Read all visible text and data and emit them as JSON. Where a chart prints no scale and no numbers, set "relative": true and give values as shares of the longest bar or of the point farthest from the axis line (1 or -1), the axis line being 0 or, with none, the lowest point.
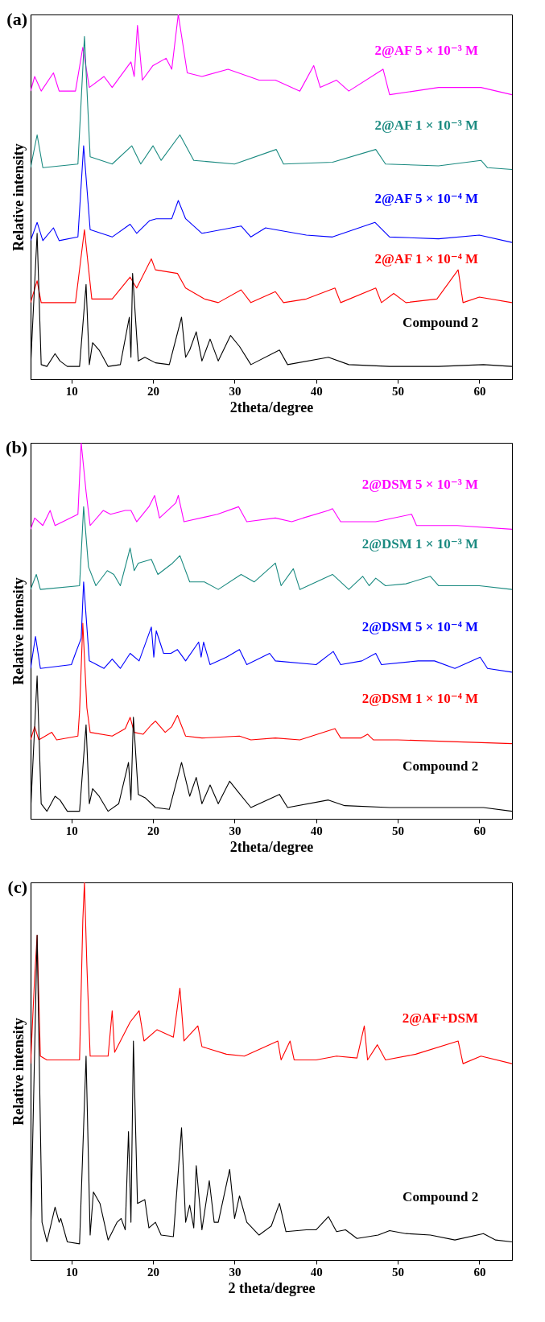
{
  "chart_data": [
    {
      "type": "line",
      "relative": true,
      "xlabel": "2theta/degree",
      "ylabel": "Relative intensity",
      "annotations": [
        "(a)"
      ],
      "xlim": [
        5,
        64
      ],
      "xticks": [
        10,
        20,
        30,
        40,
        50,
        60
      ],
      "series": [
        {
          "name": "2@AF 5 × 10⁻³ M",
          "color": "#ff00ff",
          "x": [
            5,
            5.5,
            6.3,
            7.8,
            8.5,
            10.5,
            11.4,
            12.2,
            14,
            15,
            17.3,
            17.7,
            18.1,
            18.7,
            20,
            21.6,
            22.3,
            23.1,
            24.2,
            26,
            29.2,
            33,
            35,
            38,
            39.7,
            40.5,
            42.5,
            44,
            48.2,
            49,
            55,
            60.2,
            64
          ],
          "values": [
            0.79,
            0.83,
            0.79,
            0.84,
            0.79,
            0.79,
            0.91,
            0.8,
            0.83,
            0.8,
            0.87,
            0.83,
            0.97,
            0.82,
            0.86,
            0.88,
            0.85,
            1.0,
            0.84,
            0.83,
            0.85,
            0.82,
            0.82,
            0.79,
            0.86,
            0.8,
            0.82,
            0.79,
            0.85,
            0.78,
            0.8,
            0.8,
            0.78
          ]
        },
        {
          "name": "2@AF 1 × 10⁻³ M",
          "color": "#1a8a80",
          "x": [
            5,
            5.8,
            6.5,
            10.8,
            11.6,
            12.3,
            15,
            17.4,
            18.5,
            20,
            21,
            23.3,
            25,
            30,
            35.1,
            36,
            42,
            47.3,
            48.5,
            55,
            60.2,
            61,
            64
          ],
          "values": [
            0.58,
            0.67,
            0.58,
            0.59,
            0.94,
            0.61,
            0.59,
            0.64,
            0.59,
            0.64,
            0.6,
            0.67,
            0.6,
            0.59,
            0.63,
            0.59,
            0.595,
            0.63,
            0.59,
            0.585,
            0.6,
            0.58,
            0.575
          ]
        },
        {
          "name": "2@AF 5 × 10⁻⁴ M",
          "color": "#0000ff",
          "x": [
            5,
            5.8,
            6.5,
            7.8,
            8.5,
            10.8,
            11.5,
            12.3,
            15,
            17.2,
            18,
            19.6,
            20.4,
            22.3,
            23.1,
            24,
            26,
            30.8,
            32,
            33.8,
            35,
            38.8,
            42,
            47.2,
            49,
            55,
            60,
            64
          ],
          "values": [
            0.38,
            0.43,
            0.38,
            0.415,
            0.38,
            0.39,
            0.64,
            0.41,
            0.39,
            0.425,
            0.4,
            0.435,
            0.44,
            0.44,
            0.49,
            0.44,
            0.4,
            0.42,
            0.39,
            0.415,
            0.41,
            0.395,
            0.39,
            0.43,
            0.39,
            0.385,
            0.395,
            0.375
          ]
        },
        {
          "name": "2@AF 1 × 10⁻⁴ M",
          "color": "#ff0000",
          "x": [
            5,
            5.8,
            6.3,
            10.5,
            11.6,
            12.5,
            15,
            17.2,
            18,
            19.8,
            20.3,
            23,
            24,
            26.3,
            28,
            30.8,
            32,
            35,
            36,
            38.8,
            42.3,
            43,
            47.3,
            48,
            49.5,
            51,
            54.8,
            57.4,
            58,
            60,
            64
          ],
          "values": [
            0.21,
            0.27,
            0.21,
            0.21,
            0.41,
            0.22,
            0.22,
            0.28,
            0.25,
            0.33,
            0.3,
            0.29,
            0.25,
            0.22,
            0.21,
            0.245,
            0.21,
            0.24,
            0.21,
            0.22,
            0.25,
            0.21,
            0.25,
            0.21,
            0.235,
            0.21,
            0.22,
            0.3,
            0.21,
            0.225,
            0.21
          ]
        },
        {
          "name": "Compound 2",
          "color": "#000000",
          "x": [
            5,
            5.8,
            6.3,
            7,
            8,
            8.6,
            9.5,
            11,
            11.8,
            12.2,
            12.6,
            13.4,
            14.5,
            16,
            17.1,
            17.3,
            17.5,
            18.2,
            19,
            20.3,
            22,
            23.5,
            24,
            24.5,
            25.3,
            26,
            27,
            28,
            29.5,
            30.6,
            32,
            35.5,
            36.5,
            41.5,
            44,
            49,
            55,
            60.5,
            64
          ],
          "values": [
            0.035,
            0.4,
            0.04,
            0.035,
            0.07,
            0.05,
            0.035,
            0.035,
            0.26,
            0.04,
            0.1,
            0.08,
            0.035,
            0.04,
            0.17,
            0.06,
            0.29,
            0.05,
            0.06,
            0.045,
            0.04,
            0.17,
            0.06,
            0.08,
            0.13,
            0.05,
            0.11,
            0.05,
            0.12,
            0.09,
            0.04,
            0.08,
            0.04,
            0.06,
            0.04,
            0.035,
            0.035,
            0.04,
            0.035
          ]
        }
      ]
    },
    {
      "type": "line",
      "relative": true,
      "xlabel": "2theta/degree",
      "ylabel": "Relative intensity",
      "annotations": [
        "(b)"
      ],
      "xlim": [
        5,
        64
      ],
      "xticks": [
        10,
        20,
        30,
        40,
        50,
        60
      ],
      "series": [
        {
          "name": "2@DSM 5 × 10⁻³ M",
          "color": "#ff00ff",
          "x": [
            5,
            5.5,
            6.5,
            7.4,
            8,
            10.8,
            11.2,
            11.8,
            12.3,
            13.9,
            14.8,
            16.6,
            17.3,
            18,
            19.5,
            20.2,
            20.8,
            22.8,
            23.1,
            23.8,
            27.9,
            30.5,
            31.5,
            35,
            37,
            38.4,
            41.5,
            42,
            43,
            47.3,
            51.7,
            52.3,
            57.3,
            64
          ],
          "values": [
            0.77,
            0.8,
            0.78,
            0.82,
            0.78,
            0.81,
            1.0,
            0.87,
            0.78,
            0.82,
            0.81,
            0.82,
            0.82,
            0.79,
            0.83,
            0.86,
            0.8,
            0.84,
            0.86,
            0.79,
            0.81,
            0.83,
            0.79,
            0.8,
            0.79,
            0.8,
            0.82,
            0.825,
            0.79,
            0.79,
            0.81,
            0.78,
            0.78,
            0.77
          ]
        },
        {
          "name": "2@DSM 1 × 10⁻³ M",
          "color": "#1a8a80",
          "x": [
            5,
            5.7,
            6.2,
            11,
            11.5,
            12.1,
            13,
            14.4,
            15.2,
            16,
            17.2,
            17.7,
            18.2,
            19.8,
            20.6,
            22.4,
            23.3,
            24.5,
            26.3,
            28,
            30.8,
            32.4,
            35,
            35.7,
            37.2,
            38,
            42,
            44,
            45.7,
            46.5,
            47.3,
            48.5,
            51,
            54,
            55,
            60,
            64
          ],
          "values": [
            0.61,
            0.65,
            0.61,
            0.62,
            0.83,
            0.67,
            0.62,
            0.66,
            0.65,
            0.62,
            0.72,
            0.66,
            0.68,
            0.69,
            0.65,
            0.68,
            0.7,
            0.63,
            0.63,
            0.61,
            0.65,
            0.63,
            0.68,
            0.62,
            0.665,
            0.61,
            0.65,
            0.61,
            0.645,
            0.62,
            0.64,
            0.62,
            0.625,
            0.645,
            0.62,
            0.62,
            0.61
          ]
        },
        {
          "name": "2@DSM 5 × 10⁻⁴ M",
          "color": "#0000ff",
          "x": [
            5,
            5.6,
            6.2,
            10,
            10.5,
            11.2,
            11.5,
            12.2,
            14,
            15,
            16,
            17.2,
            18.3,
            19.8,
            20.1,
            20.4,
            21.3,
            22.2,
            23,
            24,
            25.6,
            25.9,
            26.2,
            27,
            29,
            30.6,
            31.5,
            34.3,
            35,
            40,
            42.1,
            43,
            45.6,
            47.3,
            48,
            52.5,
            54.5,
            57,
            60.1,
            61,
            64
          ],
          "values": [
            0.4,
            0.485,
            0.4,
            0.41,
            0.44,
            0.48,
            0.63,
            0.42,
            0.4,
            0.425,
            0.4,
            0.44,
            0.42,
            0.51,
            0.43,
            0.5,
            0.44,
            0.44,
            0.45,
            0.42,
            0.47,
            0.43,
            0.47,
            0.41,
            0.43,
            0.45,
            0.41,
            0.44,
            0.42,
            0.41,
            0.445,
            0.41,
            0.42,
            0.44,
            0.41,
            0.42,
            0.42,
            0.4,
            0.43,
            0.4,
            0.39
          ]
        },
        {
          "name": "2@DSM 1 × 10⁻⁴ M",
          "color": "#ff0000",
          "x": [
            5,
            5.5,
            6,
            7.6,
            8.2,
            10.8,
            11,
            11.4,
            11.9,
            12.3,
            15,
            16.6,
            17.2,
            17.7,
            18.8,
            19.8,
            20.3,
            21.5,
            22.3,
            23,
            24,
            26,
            30.6,
            32,
            35,
            38,
            42.3,
            43,
            45.5,
            46.3,
            47,
            50,
            64
          ],
          "values": [
            0.21,
            0.245,
            0.21,
            0.23,
            0.21,
            0.22,
            0.285,
            0.52,
            0.295,
            0.23,
            0.22,
            0.24,
            0.27,
            0.23,
            0.225,
            0.25,
            0.26,
            0.23,
            0.245,
            0.275,
            0.22,
            0.215,
            0.22,
            0.21,
            0.215,
            0.21,
            0.24,
            0.215,
            0.215,
            0.225,
            0.21,
            0.21,
            0.2
          ]
        },
        {
          "name": "Compound 2",
          "color": "#000000",
          "x": [
            5,
            5.8,
            6.3,
            7,
            8,
            8.6,
            9.5,
            11,
            11.8,
            12.2,
            12.6,
            13.4,
            14.5,
            15.8,
            17,
            17.3,
            17.6,
            18.2,
            19.1,
            20.3,
            22,
            23.5,
            24.5,
            25.3,
            26,
            27,
            28,
            29.4,
            30.5,
            32,
            35.5,
            36.5,
            41.5,
            43.5,
            49,
            60.5,
            64
          ],
          "values": [
            0.02,
            0.38,
            0.04,
            0.02,
            0.06,
            0.05,
            0.02,
            0.02,
            0.25,
            0.04,
            0.08,
            0.06,
            0.02,
            0.04,
            0.15,
            0.05,
            0.27,
            0.065,
            0.055,
            0.03,
            0.025,
            0.15,
            0.06,
            0.11,
            0.04,
            0.09,
            0.04,
            0.1,
            0.07,
            0.03,
            0.065,
            0.03,
            0.05,
            0.035,
            0.03,
            0.03,
            0.02
          ]
        }
      ]
    },
    {
      "type": "line",
      "relative": true,
      "xlabel": "2 theta/degree",
      "ylabel": "Relative intensity",
      "annotations": [
        "(c)"
      ],
      "xlim": [
        5,
        64
      ],
      "xticks": [
        10,
        20,
        30,
        40,
        50,
        60
      ],
      "series": [
        {
          "name": "2@AF+DSM",
          "color": "#ff0000",
          "x": [
            5,
            5.5,
            5.8,
            6.2,
            7,
            11,
            11.4,
            11.6,
            11.9,
            12.3,
            14.5,
            15,
            15.3,
            17.2,
            18.3,
            18.9,
            20.5,
            22.5,
            23.3,
            23.8,
            25.5,
            26,
            29,
            31.2,
            35.3,
            35.7,
            36.8,
            37.3,
            40,
            42.5,
            45,
            45.9,
            46.3,
            47.5,
            48.5,
            52.2,
            57.4,
            58,
            60.2,
            64
          ],
          "values": [
            0.52,
            0.75,
            0.86,
            0.54,
            0.53,
            0.53,
            0.9,
            1.0,
            0.78,
            0.54,
            0.54,
            0.66,
            0.55,
            0.63,
            0.66,
            0.58,
            0.61,
            0.59,
            0.72,
            0.58,
            0.62,
            0.565,
            0.545,
            0.54,
            0.58,
            0.53,
            0.58,
            0.53,
            0.53,
            0.54,
            0.535,
            0.62,
            0.53,
            0.57,
            0.53,
            0.545,
            0.58,
            0.52,
            0.54,
            0.52
          ]
        },
        {
          "name": "Compound 2",
          "color": "#000000",
          "x": [
            5,
            5.8,
            6.4,
            7,
            8,
            8.5,
            8.7,
            9.5,
            11,
            11.8,
            12.3,
            12.7,
            13.5,
            14.5,
            15.6,
            16.1,
            16.6,
            17,
            17.3,
            17.6,
            18.1,
            19,
            19.5,
            20.3,
            21,
            22.5,
            23.5,
            24,
            24.5,
            25,
            25.3,
            26,
            26.9,
            27.5,
            28,
            29.4,
            30,
            30.6,
            31.5,
            33,
            34.5,
            35.5,
            36.3,
            38.8,
            40,
            41.5,
            42.5,
            43.6,
            45,
            47.6,
            49,
            51,
            54,
            57,
            60.5,
            62,
            64
          ],
          "values": [
            0.057,
            0.86,
            0.1,
            0.048,
            0.14,
            0.1,
            0.11,
            0.048,
            0.043,
            0.54,
            0.066,
            0.18,
            0.15,
            0.053,
            0.1,
            0.11,
            0.08,
            0.34,
            0.1,
            0.58,
            0.15,
            0.16,
            0.085,
            0.1,
            0.066,
            0.062,
            0.35,
            0.1,
            0.145,
            0.085,
            0.25,
            0.08,
            0.21,
            0.1,
            0.1,
            0.24,
            0.11,
            0.17,
            0.1,
            0.066,
            0.09,
            0.15,
            0.075,
            0.08,
            0.08,
            0.115,
            0.075,
            0.08,
            0.057,
            0.066,
            0.078,
            0.07,
            0.066,
            0.053,
            0.07,
            0.053,
            0.048
          ]
        }
      ]
    }
  ]
}
